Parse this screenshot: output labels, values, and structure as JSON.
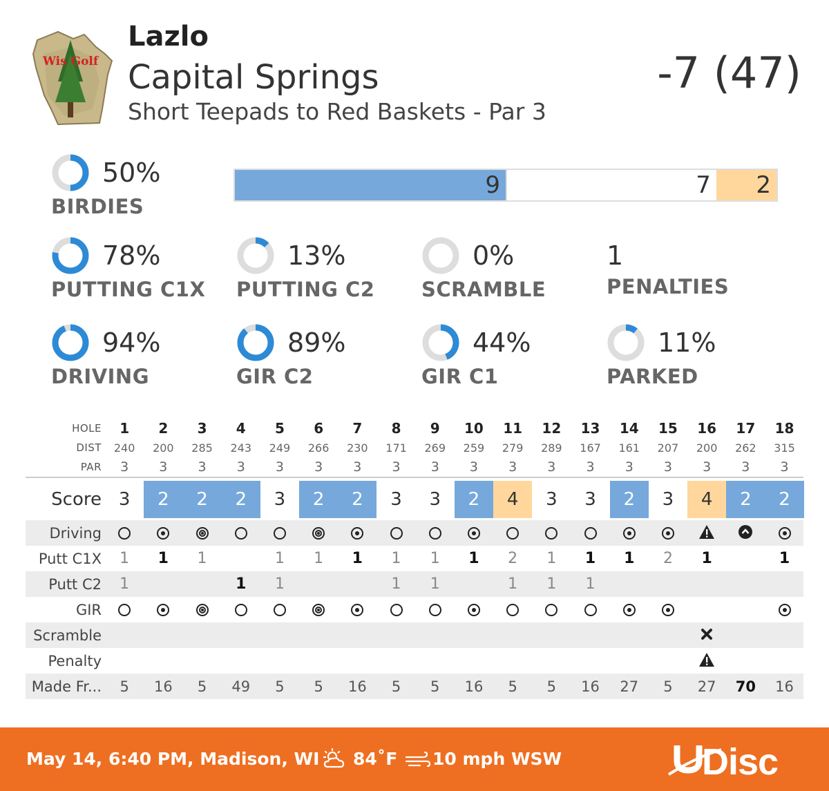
{
  "header": {
    "logo_text": "Wis Golf",
    "player": "Lazlo",
    "course": "Capital Springs",
    "layout": "Short Teepads to Red Baskets - Par 3",
    "total": "-7 (47)"
  },
  "birdies": {
    "pct_text": "50%",
    "label": "BIRDIES",
    "fraction": 0.5
  },
  "score_bar": [
    {
      "label": "9",
      "value": 9,
      "color": "#76a8db"
    },
    {
      "label": "7",
      "value": 7,
      "color": "#ffffff"
    },
    {
      "label": "2",
      "value": 2,
      "color": "#ffd79c"
    }
  ],
  "stats_row1": [
    {
      "pct_text": "78%",
      "label": "PUTTING C1X",
      "fraction": 0.78
    },
    {
      "pct_text": "13%",
      "label": "PUTTING C2",
      "fraction": 0.13
    },
    {
      "pct_text": "0%",
      "label": "SCRAMBLE",
      "fraction": 0
    },
    {
      "num_text": "1",
      "label": "PENALTIES"
    }
  ],
  "stats_row2": [
    {
      "pct_text": "94%",
      "label": "DRIVING",
      "fraction": 0.94
    },
    {
      "pct_text": "89%",
      "label": "GIR C2",
      "fraction": 0.89
    },
    {
      "pct_text": "44%",
      "label": "GIR C1",
      "fraction": 0.44
    },
    {
      "pct_text": "11%",
      "label": "PARKED",
      "fraction": 0.11
    }
  ],
  "colors": {
    "accent": "#2d8ad6",
    "ring_bg": "#dddddd",
    "birdie": "#76a8db",
    "bogey": "#ffd79c",
    "footer": "#ee6f21"
  },
  "scorecard": {
    "labels": {
      "hole": "HOLE",
      "dist": "DIST",
      "par": "PAR",
      "score": "Score",
      "driving": "Driving",
      "putt_c1x": "Putt C1X",
      "putt_c2": "Putt C2",
      "gir": "GIR",
      "scramble": "Scramble",
      "penalty": "Penalty",
      "made_from": "Made Fr..."
    },
    "holes": [
      "1",
      "2",
      "3",
      "4",
      "5",
      "6",
      "7",
      "8",
      "9",
      "10",
      "11",
      "12",
      "13",
      "14",
      "15",
      "16",
      "17",
      "18"
    ],
    "dist": [
      "240",
      "200",
      "285",
      "243",
      "249",
      "266",
      "230",
      "171",
      "269",
      "259",
      "279",
      "289",
      "167",
      "161",
      "207",
      "200",
      "262",
      "315"
    ],
    "par": [
      "3",
      "3",
      "3",
      "3",
      "3",
      "3",
      "3",
      "3",
      "3",
      "3",
      "3",
      "3",
      "3",
      "3",
      "3",
      "3",
      "3",
      "3"
    ],
    "score": [
      "3",
      "2",
      "2",
      "2",
      "3",
      "2",
      "2",
      "3",
      "3",
      "2",
      "4",
      "3",
      "3",
      "2",
      "3",
      "4",
      "2",
      "2"
    ],
    "driving": [
      "ring",
      "dot",
      "double",
      "ring",
      "ring",
      "double",
      "dot",
      "ring",
      "ring",
      "dot",
      "ring",
      "ring",
      "ring",
      "dot",
      "dot",
      "warning",
      "chevron-up",
      "dot"
    ],
    "putt_c1x": [
      "1",
      "1",
      "1",
      "",
      "1",
      "1",
      "1",
      "1",
      "1",
      "1",
      "2",
      "1",
      "1",
      "1",
      "2",
      "1",
      "",
      "1"
    ],
    "putt_c1x_bold": [
      false,
      true,
      false,
      false,
      false,
      false,
      true,
      false,
      false,
      true,
      false,
      false,
      true,
      true,
      false,
      true,
      false,
      true
    ],
    "putt_c2": [
      "1",
      "",
      "",
      "1",
      "1",
      "",
      "",
      "1",
      "1",
      "",
      "1",
      "1",
      "1",
      "",
      "",
      "",
      "",
      ""
    ],
    "putt_c2_bold": [
      false,
      false,
      false,
      true,
      false,
      false,
      false,
      false,
      false,
      false,
      false,
      false,
      false,
      false,
      false,
      false,
      false,
      false
    ],
    "gir": [
      "ring",
      "dot",
      "double",
      "ring",
      "ring",
      "double",
      "dot",
      "ring",
      "ring",
      "dot",
      "ring",
      "ring",
      "ring",
      "dot",
      "dot",
      "",
      "",
      "dot"
    ],
    "scramble": [
      "",
      "",
      "",
      "",
      "",
      "",
      "",
      "",
      "",
      "",
      "",
      "",
      "",
      "",
      "",
      "x",
      "",
      ""
    ],
    "penalty": [
      "",
      "",
      "",
      "",
      "",
      "",
      "",
      "",
      "",
      "",
      "",
      "",
      "",
      "",
      "",
      "warning",
      "",
      ""
    ],
    "made_from": [
      "5",
      "16",
      "5",
      "49",
      "5",
      "5",
      "16",
      "5",
      "5",
      "16",
      "5",
      "5",
      "16",
      "27",
      "5",
      "27",
      "70",
      "16"
    ],
    "made_from_bold": [
      false,
      false,
      false,
      false,
      false,
      false,
      false,
      false,
      false,
      false,
      false,
      false,
      false,
      false,
      false,
      false,
      true,
      false
    ]
  },
  "footer": {
    "date": "May 14, 6:40 PM, Madison, WI",
    "weather_icon": "partly-cloudy-icon",
    "temp": "84˚F",
    "wind_icon": "wind-icon",
    "wind": "10 mph WSW",
    "brand": "UDisc"
  }
}
